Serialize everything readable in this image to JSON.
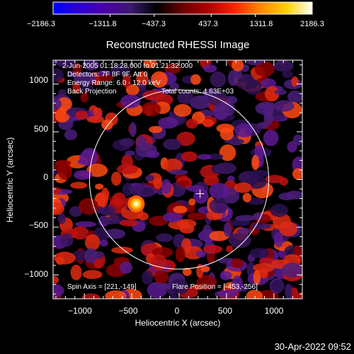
{
  "colorbar": {
    "colors": [
      "#0000ff",
      "#2a00d0",
      "#4c00a6",
      "#3b1a6e",
      "#000000",
      "#6a0000",
      "#b00000",
      "#ff2200",
      "#ff8800",
      "#ffd000",
      "#ffffff"
    ],
    "tick_labels": [
      "−2186.3",
      "−1311.8",
      "−437.3",
      "437.3",
      "1311.8",
      "2186.3"
    ]
  },
  "plot": {
    "title": "Reconstructed RHESSI Image",
    "info": {
      "time_range": "2-Jun-2005 01:18:28.000 to 01:21:32.000",
      "detectors": "Detectors: 7F 8F 9F, Att 0",
      "energy": "Energy Range: 6.0 - 12.0 keV",
      "method": "Back Projection",
      "counts": "Total counts: 4.63E+03"
    },
    "footer": {
      "spin_axis": "Spin Axis = [221,-149]",
      "flare_position": "Flare Position = [-453,-256]"
    },
    "xlabel": "Heliocentric X (arcsec)",
    "ylabel": "Heliocentric Y (arcsec)",
    "x_ticks": [
      "−1000",
      "−500",
      "0",
      "500",
      "1000"
    ],
    "y_ticks": [
      "1000",
      "500",
      "0",
      "−500",
      "−1000"
    ],
    "xlim": [
      -1330,
      1300
    ],
    "ylim": [
      -1250,
      1250
    ],
    "solar_radius_arcsec": 946,
    "spin_axis_xy": [
      221,
      -149
    ],
    "flare_xy": [
      -453,
      -256
    ]
  },
  "timestamp": "30-Apr-2022 09:52"
}
